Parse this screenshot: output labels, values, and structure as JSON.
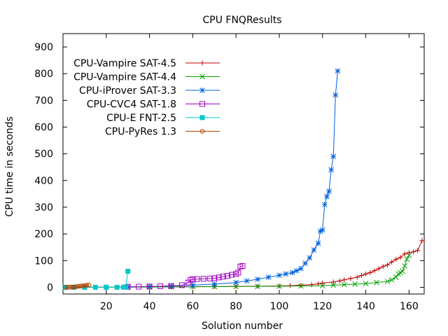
{
  "chart_data": {
    "type": "line",
    "title": "CPU FNQResults",
    "xlabel": "Solution number",
    "ylabel": "CPU time in seconds",
    "xlim": [
      0,
      167
    ],
    "ylim": [
      -25,
      950
    ],
    "xticks": [
      20,
      40,
      60,
      80,
      100,
      120,
      140,
      160
    ],
    "yticks": [
      0,
      100,
      200,
      300,
      400,
      500,
      600,
      700,
      800,
      900
    ],
    "grid": false,
    "legend_position": "top-left",
    "series": [
      {
        "name": "CPU-Vampire SAT-4.5",
        "color": "#c00000",
        "marker": "plus",
        "x": [
          1,
          10,
          20,
          30,
          40,
          50,
          60,
          70,
          80,
          90,
          100,
          105,
          110,
          115,
          118,
          120,
          125,
          128,
          130,
          133,
          136,
          138,
          140,
          142,
          144,
          146,
          148,
          150,
          152,
          154,
          156,
          158,
          160,
          162,
          164,
          166
        ],
        "y": [
          0,
          0.5,
          0.8,
          1,
          1.5,
          2,
          2.5,
          3,
          3.5,
          4,
          5,
          6,
          8,
          10,
          13,
          16,
          20,
          24,
          28,
          33,
          38,
          44,
          50,
          55,
          62,
          70,
          78,
          84,
          95,
          105,
          112,
          125,
          130,
          133,
          138,
          175
        ]
      },
      {
        "name": "CPU-Vampire SAT-4.4",
        "color": "#00a000",
        "marker": "x",
        "x": [
          1,
          10,
          20,
          30,
          40,
          50,
          60,
          70,
          80,
          90,
          100,
          110,
          120,
          125,
          130,
          135,
          140,
          145,
          150,
          152,
          154,
          155,
          156,
          157,
          158,
          159,
          160
        ],
        "y": [
          0,
          0.3,
          0.6,
          0.8,
          1,
          1.5,
          2,
          2.5,
          3,
          3.5,
          4,
          5,
          6,
          8,
          10,
          12,
          14,
          18,
          22,
          28,
          38,
          50,
          55,
          60,
          80,
          105,
          120
        ]
      },
      {
        "name": "CPU-iProver SAT-3.3",
        "color": "#0060e0",
        "marker": "star",
        "x": [
          30,
          40,
          50,
          60,
          70,
          80,
          85,
          90,
          95,
          100,
          103,
          106,
          108,
          110,
          112,
          114,
          116,
          118,
          119,
          120,
          121,
          122,
          123,
          124,
          125,
          126,
          127
        ],
        "y": [
          2,
          3,
          5,
          8,
          12,
          18,
          24,
          30,
          38,
          45,
          50,
          55,
          62,
          70,
          90,
          110,
          140,
          165,
          210,
          215,
          310,
          340,
          360,
          440,
          490,
          720,
          810
        ]
      },
      {
        "name": "CPU-CVC4 SAT-1.8",
        "color": "#a000c0",
        "marker": "square",
        "x": [
          30,
          35,
          40,
          45,
          50,
          55,
          58,
          59,
          60,
          62,
          65,
          68,
          70,
          72,
          74,
          76,
          78,
          80,
          81,
          82,
          83
        ],
        "y": [
          2,
          2.5,
          3,
          4,
          5,
          8,
          18,
          28,
          30,
          31,
          32,
          33,
          34,
          37,
          40,
          43,
          47,
          50,
          55,
          78,
          80
        ]
      },
      {
        "name": "CPU-E FNT-2.5",
        "color": "#00c8c8",
        "marker": "filled-square",
        "x": [
          1,
          5,
          10,
          15,
          20,
          25,
          28,
          29,
          30
        ],
        "y": [
          0,
          0,
          0.1,
          0.1,
          0.2,
          0.3,
          0.5,
          1,
          60
        ]
      },
      {
        "name": "CPU-PyRes 1.3",
        "color": "#b04000",
        "marker": "circle",
        "x": [
          1,
          2,
          3,
          4,
          5,
          6,
          7,
          8,
          9,
          10,
          11,
          12
        ],
        "y": [
          0.1,
          0.3,
          0.6,
          1,
          1.5,
          2.5,
          3.5,
          4.5,
          5.5,
          6.5,
          8,
          9
        ]
      }
    ]
  }
}
